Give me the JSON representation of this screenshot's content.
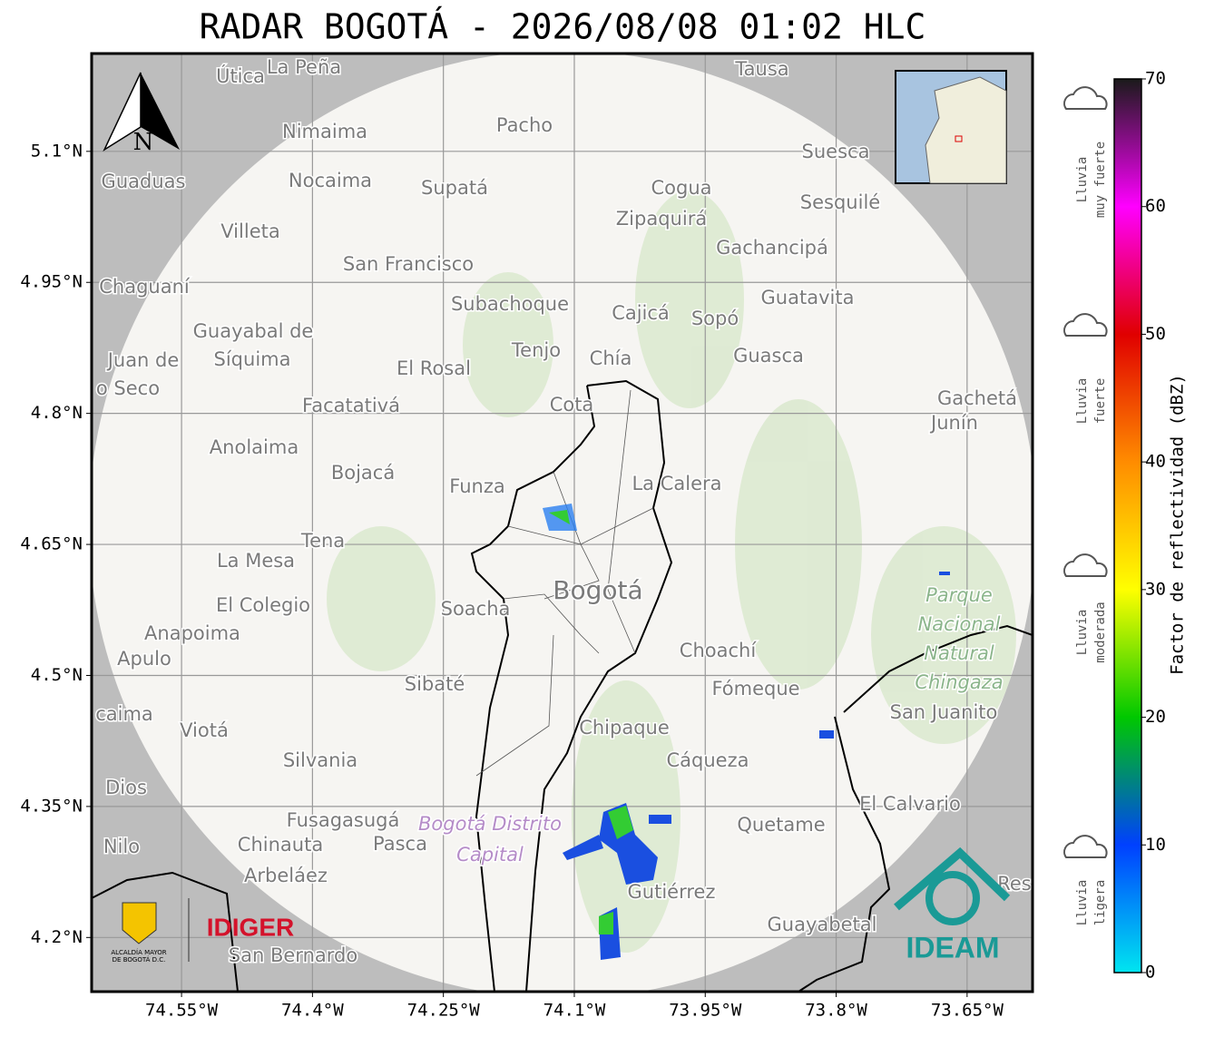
{
  "title": "RADAR BOGOTÁ - 2026/08/08 01:02 HLC",
  "map": {
    "xlim": [
      -74.653,
      -73.575
    ],
    "ylim": [
      4.138,
      5.212
    ],
    "xticks": [
      {
        "value": -74.55,
        "label": "74.55°W"
      },
      {
        "value": -74.4,
        "label": "74.4°W"
      },
      {
        "value": -74.25,
        "label": "74.25°W"
      },
      {
        "value": -74.1,
        "label": "74.1°W"
      },
      {
        "value": -73.95,
        "label": "73.95°W"
      },
      {
        "value": -73.8,
        "label": "73.8°W"
      },
      {
        "value": -73.65,
        "label": "73.65°W"
      }
    ],
    "yticks": [
      {
        "value": 5.1,
        "label": "5.1°N"
      },
      {
        "value": 4.95,
        "label": "4.95°N"
      },
      {
        "value": 4.8,
        "label": "4.8°N"
      },
      {
        "value": 4.65,
        "label": "4.65°N"
      },
      {
        "value": 4.5,
        "label": "4.5°N"
      },
      {
        "value": 4.35,
        "label": "4.35°N"
      },
      {
        "value": 4.2,
        "label": "4.2°N"
      }
    ],
    "north": "N",
    "places": [
      "Útica",
      "La Peña",
      "Tausa",
      "Pacho",
      "Nimaima",
      "Guaduas",
      "Nocaima",
      "Supatá",
      "Cogua",
      "Suesca",
      "Sesquilé",
      "Zipaquirá",
      "Villeta",
      "Gachancipá",
      "San Francisco",
      "Chaguaní",
      "Guatavita",
      "Subachoque",
      "Cajicá",
      "Sopó",
      "Guayabal de",
      "Síquima",
      "Tenjo",
      "Chía",
      "Guasca",
      "Juan de",
      "o Seco",
      "El Rosal",
      "Facatativá",
      "Cota",
      "Gachetá",
      "Junín",
      "Anolaima",
      "Bojacá",
      "Funza",
      "La Calera",
      "Tena",
      "La Mesa",
      "Bogotá",
      "Soacha",
      "El Colegio",
      "Anapoima",
      "Apulo",
      "Choachí",
      "Sibaté",
      "Fómeque",
      "caima",
      "San Juanito",
      "Viotá",
      "Chipaque",
      "Silvania",
      "Cáqueza",
      "Dios",
      "El Calvario",
      "Fusagasugá",
      "Quetame",
      "Nilo",
      "Chinauta",
      "Pasca",
      "Arbeláez",
      "Gutiérrez",
      "Res",
      "Guayabetal",
      "San Bernardo"
    ],
    "park": [
      "Parque",
      "Nacional",
      "Natural",
      "Chingaza"
    ],
    "district": [
      "Bogotá Distrito",
      "Capital"
    ]
  },
  "logos": {
    "idiger": "IDIGER",
    "alcaldia": [
      "ALCALDÍA MAYOR",
      "DE BOGOTÁ D.C."
    ],
    "ideam": "IDEAM"
  },
  "colorbar": {
    "label": "Factor de reflectividad (dBZ)",
    "lim": [
      0,
      70
    ],
    "ticks": [
      0,
      10,
      20,
      30,
      40,
      50,
      60,
      70
    ],
    "colors": [
      "#00e5f0",
      "#0040ff",
      "#00c800",
      "#ffff00",
      "#ff8c00",
      "#e00000",
      "#ff00ff",
      "#1a1a1a"
    ],
    "categories": [
      [
        "Lluvia",
        "muy fuerte"
      ],
      [
        "Lluvia",
        "fuerte"
      ],
      [
        "Lluvia",
        "moderada"
      ],
      [
        "Lluvia",
        "ligera"
      ]
    ]
  }
}
